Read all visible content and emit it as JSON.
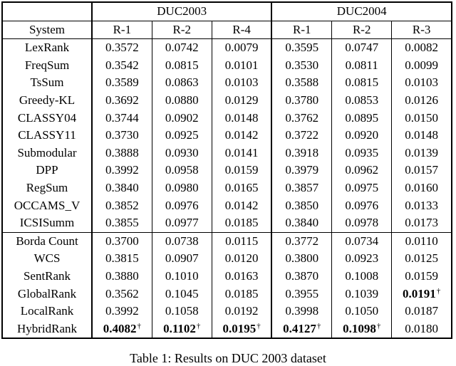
{
  "page": {
    "background": "#ffffff",
    "text_color": "#000000",
    "border_color": "#000000"
  },
  "caption": "Table 1: Results on DUC 2003 dataset",
  "table": {
    "corner_label": "",
    "dagger_symbol": "†",
    "group_headers": [
      {
        "label": "DUC2003",
        "span": 3
      },
      {
        "label": "DUC2004",
        "span": 3
      }
    ],
    "column_headers": [
      "System",
      "R-1",
      "R-2",
      "R-4",
      "R-1",
      "R-2",
      "R-3"
    ],
    "groups": [
      {
        "rows": [
          {
            "system": "LexRank",
            "values": [
              "0.3572",
              "0.0742",
              "0.0079",
              "0.3595",
              "0.0747",
              "0.0082"
            ]
          },
          {
            "system": "FreqSum",
            "values": [
              "0.3542",
              "0.0815",
              "0.0101",
              "0.3530",
              "0.0811",
              "0.0099"
            ]
          },
          {
            "system": "TsSum",
            "values": [
              "0.3589",
              "0.0863",
              "0.0103",
              "0.3588",
              "0.0815",
              "0.0103"
            ]
          },
          {
            "system": "Greedy-KL",
            "values": [
              "0.3692",
              "0.0880",
              "0.0129",
              "0.3780",
              "0.0853",
              "0.0126"
            ]
          },
          {
            "system": "CLASSY04",
            "values": [
              "0.3744",
              "0.0902",
              "0.0148",
              "0.3762",
              "0.0895",
              "0.0150"
            ]
          },
          {
            "system": "CLASSY11",
            "values": [
              "0.3730",
              "0.0925",
              "0.0142",
              "0.3722",
              "0.0920",
              "0.0148"
            ]
          },
          {
            "system": "Submodular",
            "values": [
              "0.3888",
              "0.0930",
              "0.0141",
              "0.3918",
              "0.0935",
              "0.0139"
            ]
          },
          {
            "system": "DPP",
            "values": [
              "0.3992",
              "0.0958",
              "0.0159",
              "0.3979",
              "0.0962",
              "0.0157"
            ]
          },
          {
            "system": "RegSum",
            "values": [
              "0.3840",
              "0.0980",
              "0.0165",
              "0.3857",
              "0.0975",
              "0.0160"
            ]
          },
          {
            "system": "OCCAMS_V",
            "values": [
              "0.3852",
              "0.0976",
              "0.0142",
              "0.3850",
              "0.0976",
              "0.0133"
            ]
          },
          {
            "system": "ICSISumm",
            "values": [
              "0.3855",
              "0.0977",
              "0.0185",
              "0.3840",
              "0.0978",
              "0.0173"
            ]
          }
        ]
      },
      {
        "rows": [
          {
            "system": "Borda Count",
            "values": [
              "0.3700",
              "0.0738",
              "0.0115",
              "0.3772",
              "0.0734",
              "0.0110"
            ]
          },
          {
            "system": "WCS",
            "values": [
              "0.3815",
              "0.0907",
              "0.0120",
              "0.3800",
              "0.0923",
              "0.0125"
            ]
          },
          {
            "system": "SentRank",
            "values": [
              "0.3880",
              "0.1010",
              "0.0163",
              "0.3870",
              "0.1008",
              "0.0159"
            ]
          },
          {
            "system": "GlobalRank",
            "values": [
              "0.3562",
              "0.1045",
              "0.0185",
              "0.3955",
              "0.1039",
              {
                "v": "0.0191",
                "bold": true,
                "dagger": true
              }
            ]
          },
          {
            "system": "LocalRank",
            "values": [
              "0.3992",
              "0.1058",
              "0.0192",
              "0.3998",
              "0.1050",
              "0.0187"
            ]
          },
          {
            "system": "HybridRank",
            "values": [
              {
                "v": "0.4082",
                "bold": true,
                "dagger": true
              },
              {
                "v": "0.1102",
                "bold": true,
                "dagger": true
              },
              {
                "v": "0.0195",
                "bold": true,
                "dagger": true
              },
              {
                "v": "0.4127",
                "bold": true,
                "dagger": true
              },
              {
                "v": "0.1098",
                "bold": true,
                "dagger": true
              },
              "0.0180"
            ]
          }
        ]
      }
    ]
  }
}
